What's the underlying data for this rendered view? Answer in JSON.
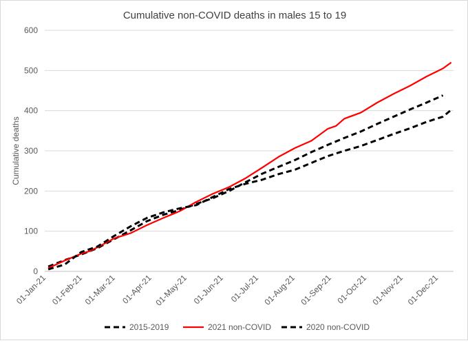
{
  "chart_data": {
    "type": "line",
    "title": "Cumulative non-COVID deaths in males 15 to 19",
    "xlabel": "",
    "ylabel": "Cumulative deaths",
    "ylim": [
      0,
      600
    ],
    "yticks": [
      0,
      100,
      200,
      300,
      400,
      500,
      600
    ],
    "x_tick_labels": [
      "01-Jan-21",
      "01-Feb-21",
      "01-Mar-21",
      "01-Apr-21",
      "01-May-21",
      "01-Jun-21",
      "01-Jul-21",
      "01-Aug-21",
      "01-Sep-21",
      "01-Oct-21",
      "01-Nov-21",
      "01-Dec-21"
    ],
    "grid": "horizontal",
    "legend_position": "bottom",
    "colors": {
      "line_2021": "#ff0000",
      "line_black": "#000000",
      "grid": "#d9d9d9"
    },
    "series": [
      {
        "name": "2015-2019",
        "style": "dashed",
        "color": "#000000",
        "points": [
          [
            "2021-01-04",
            12
          ],
          [
            "2021-01-18",
            28
          ],
          [
            "2021-02-01",
            42
          ],
          [
            "2021-02-15",
            58
          ],
          [
            "2021-03-01",
            80
          ],
          [
            "2021-03-15",
            102
          ],
          [
            "2021-03-29",
            125
          ],
          [
            "2021-04-12",
            141
          ],
          [
            "2021-04-26",
            153
          ],
          [
            "2021-05-10",
            168
          ],
          [
            "2021-05-24",
            182
          ],
          [
            "2021-06-07",
            200
          ],
          [
            "2021-06-21",
            222
          ],
          [
            "2021-07-05",
            243
          ],
          [
            "2021-07-19",
            260
          ],
          [
            "2021-08-02",
            277
          ],
          [
            "2021-08-16",
            297
          ],
          [
            "2021-08-30",
            315
          ],
          [
            "2021-09-13",
            332
          ],
          [
            "2021-09-27",
            348
          ],
          [
            "2021-10-11",
            367
          ],
          [
            "2021-10-25",
            385
          ],
          [
            "2021-11-08",
            403
          ],
          [
            "2021-11-22",
            420
          ],
          [
            "2021-12-06",
            438
          ]
        ]
      },
      {
        "name": "2021 non-COVID",
        "style": "solid",
        "color": "#ff0000",
        "points": [
          [
            "2021-01-04",
            8
          ],
          [
            "2021-01-18",
            27
          ],
          [
            "2021-02-01",
            44
          ],
          [
            "2021-02-08",
            50
          ],
          [
            "2021-02-15",
            60
          ],
          [
            "2021-03-01",
            82
          ],
          [
            "2021-03-15",
            95
          ],
          [
            "2021-03-29",
            115
          ],
          [
            "2021-04-12",
            133
          ],
          [
            "2021-04-26",
            150
          ],
          [
            "2021-05-10",
            173
          ],
          [
            "2021-05-24",
            193
          ],
          [
            "2021-06-07",
            210
          ],
          [
            "2021-06-21",
            232
          ],
          [
            "2021-07-05",
            258
          ],
          [
            "2021-07-19",
            285
          ],
          [
            "2021-08-02",
            307
          ],
          [
            "2021-08-16",
            325
          ],
          [
            "2021-08-30",
            355
          ],
          [
            "2021-09-06",
            362
          ],
          [
            "2021-09-13",
            380
          ],
          [
            "2021-09-27",
            395
          ],
          [
            "2021-10-11",
            420
          ],
          [
            "2021-10-25",
            442
          ],
          [
            "2021-11-08",
            462
          ],
          [
            "2021-11-22",
            485
          ],
          [
            "2021-12-06",
            505
          ],
          [
            "2021-12-13",
            520
          ]
        ]
      },
      {
        "name": "2020 non-COVID",
        "style": "dashed",
        "color": "#000000",
        "points": [
          [
            "2021-01-04",
            5
          ],
          [
            "2021-01-18",
            17
          ],
          [
            "2021-02-01",
            48
          ],
          [
            "2021-02-15",
            62
          ],
          [
            "2021-03-01",
            88
          ],
          [
            "2021-03-15",
            112
          ],
          [
            "2021-03-29",
            133
          ],
          [
            "2021-04-12",
            147
          ],
          [
            "2021-04-26",
            157
          ],
          [
            "2021-05-10",
            165
          ],
          [
            "2021-05-24",
            185
          ],
          [
            "2021-06-07",
            205
          ],
          [
            "2021-06-21",
            218
          ],
          [
            "2021-07-05",
            228
          ],
          [
            "2021-07-19",
            242
          ],
          [
            "2021-08-02",
            253
          ],
          [
            "2021-08-16",
            270
          ],
          [
            "2021-08-30",
            287
          ],
          [
            "2021-09-13",
            300
          ],
          [
            "2021-09-27",
            312
          ],
          [
            "2021-10-11",
            327
          ],
          [
            "2021-10-25",
            342
          ],
          [
            "2021-11-08",
            356
          ],
          [
            "2021-11-22",
            372
          ],
          [
            "2021-12-06",
            385
          ],
          [
            "2021-12-13",
            402
          ]
        ]
      }
    ]
  }
}
